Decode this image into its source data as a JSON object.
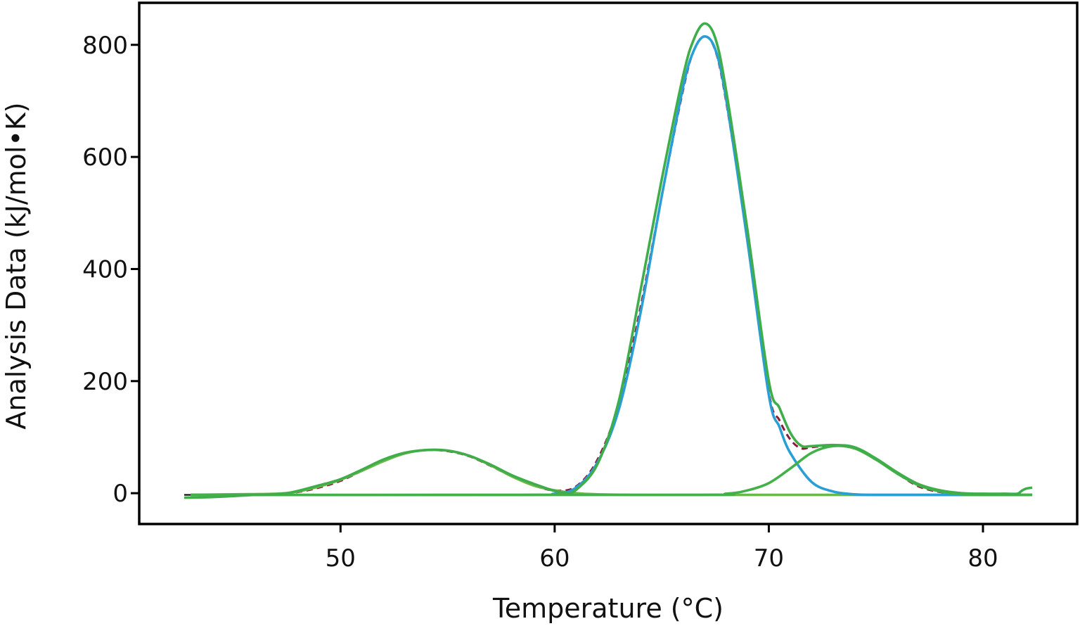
{
  "chart_data": {
    "type": "line",
    "title": "",
    "xlabel": "Temperature (°C)",
    "ylabel": "Analysis Data (kJ/mol•K)",
    "xlim": [
      40.6,
      84.4
    ],
    "ylim": [
      -55,
      875
    ],
    "x_ticks": [
      50,
      60,
      70,
      80
    ],
    "y_ticks": [
      0,
      200,
      400,
      600,
      800
    ],
    "grid": false,
    "legend": "none",
    "colors": {
      "baseline": "#000000",
      "peak1": "#6bb84a",
      "peak2": "#2a9fd6",
      "peak3": "#44b04a",
      "fit_sum": "#3fae4a",
      "raw_data": "#8b1a3a"
    },
    "series": [
      {
        "key": "baseline",
        "style": "solid",
        "width": 2.2,
        "x": [
          42.7,
          82.3
        ],
        "y": [
          -3,
          -3
        ]
      },
      {
        "key": "raw_data",
        "style": "dashed",
        "width": 3,
        "x": [
          43,
          45,
          47,
          48,
          49,
          50,
          51,
          52,
          53,
          54,
          55,
          56,
          57,
          58,
          59,
          60,
          61,
          62,
          63,
          64,
          65,
          66,
          66.5,
          67,
          67.5,
          68,
          69,
          70,
          70.5,
          71,
          71.5,
          72,
          73,
          74,
          75,
          76,
          77,
          78,
          79,
          80,
          81,
          82,
          82.3
        ],
        "y": [
          -3,
          -2,
          -1,
          2,
          10,
          22,
          40,
          58,
          71,
          77,
          75,
          66,
          49,
          30,
          14,
          5,
          12,
          60,
          160,
          330,
          530,
          720,
          790,
          815,
          790,
          700,
          455,
          180,
          130,
          96,
          80,
          82,
          85,
          80,
          60,
          35,
          12,
          2,
          -2,
          -3,
          -3,
          -3,
          -3
        ]
      },
      {
        "key": "peak1",
        "style": "solid",
        "width": 3.6,
        "x": [
          43,
          45,
          47,
          48,
          49,
          50,
          51,
          52,
          53,
          54,
          55,
          56,
          57,
          58,
          59,
          60,
          61,
          62,
          64,
          66,
          70,
          75,
          80,
          82.3
        ],
        "y": [
          -3,
          -2,
          -1,
          3,
          12,
          24,
          40,
          57,
          71,
          77,
          76,
          67,
          50,
          30,
          14,
          5,
          0,
          -2,
          -3,
          -3,
          -3,
          -3,
          -3,
          -3
        ]
      },
      {
        "key": "peak2",
        "style": "solid",
        "width": 3.6,
        "x": [
          43,
          58,
          60,
          61,
          62,
          63,
          64,
          65,
          66,
          66.5,
          67,
          67.5,
          68,
          69,
          70,
          70.5,
          71,
          72,
          73,
          74,
          75,
          77,
          80,
          82.3
        ],
        "y": [
          -3,
          -3,
          -1,
          10,
          55,
          150,
          320,
          530,
          725,
          790,
          815,
          792,
          705,
          450,
          175,
          118,
          72,
          20,
          3,
          -2,
          -3,
          -3,
          -3,
          -3
        ]
      },
      {
        "key": "peak3",
        "style": "solid",
        "width": 3.6,
        "x": [
          43,
          66,
          68,
          69,
          70,
          71,
          72,
          73,
          74,
          75,
          76,
          77,
          78,
          79,
          80,
          82.3
        ],
        "y": [
          -3,
          -3,
          -1,
          5,
          18,
          44,
          72,
          84,
          80,
          60,
          35,
          14,
          3,
          -2,
          -3,
          -3
        ]
      },
      {
        "key": "fit_sum",
        "style": "solid",
        "width": 3.6,
        "x": [
          42.7,
          44,
          46,
          47.5,
          49,
          50,
          51,
          52,
          53,
          54,
          55,
          56,
          57,
          58,
          59,
          60,
          60.5,
          61,
          62,
          63,
          64,
          65,
          66,
          66.5,
          67,
          67.5,
          68,
          69,
          70,
          70.5,
          71,
          71.5,
          72,
          73,
          74,
          75,
          76,
          77,
          78,
          79,
          80,
          81,
          81.6,
          81.8,
          82,
          82.3
        ],
        "y": [
          -8,
          -7,
          -3,
          0,
          14,
          25,
          42,
          60,
          72,
          77,
          76,
          67,
          51,
          32,
          17,
          4,
          1,
          6,
          52,
          165,
          360,
          560,
          745,
          810,
          838,
          812,
          720,
          470,
          200,
          152,
          108,
          85,
          84,
          86,
          82,
          62,
          37,
          16,
          5,
          0,
          -1,
          -1,
          -1,
          4,
          8,
          10
        ]
      }
    ]
  }
}
